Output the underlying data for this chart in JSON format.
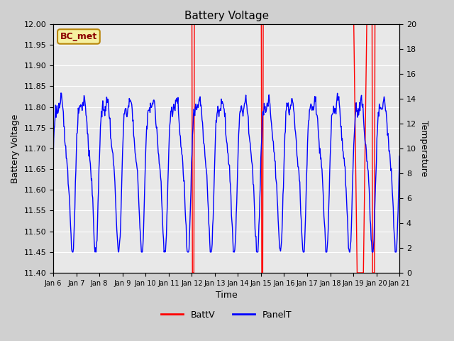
{
  "title": "Battery Voltage",
  "xlabel": "Time",
  "ylabel_left": "Battery Voltage",
  "ylabel_right": "Temperature",
  "legend_label": "BC_met",
  "series_labels": [
    "BattV",
    "PanelT"
  ],
  "series_colors": [
    "red",
    "blue"
  ],
  "left_ylim": [
    11.4,
    12.0
  ],
  "right_ylim": [
    0,
    20
  ],
  "left_yticks": [
    11.4,
    11.45,
    11.5,
    11.55,
    11.6,
    11.65,
    11.7,
    11.75,
    11.8,
    11.85,
    11.9,
    11.95,
    12.0
  ],
  "right_yticks": [
    0,
    2,
    4,
    6,
    8,
    10,
    12,
    14,
    16,
    18,
    20
  ],
  "x_tick_labels": [
    "Jan 6",
    "Jan 7",
    "Jan 8",
    "Jan 9",
    "Jan 10",
    "Jan 11",
    "Jan 12",
    "Jan 13",
    "Jan 14",
    "Jan 15",
    "Jan 16",
    "Jan 17",
    "Jan 18",
    "Jan 19",
    "Jan 20",
    "Jan 21"
  ],
  "fig_bg": "#d0d0d0",
  "plot_bg": "#e8e8e8",
  "grid_color": "white",
  "batt_color": "red",
  "panel_color": "blue",
  "label_box_facecolor": "#f5f0a0",
  "label_box_edgecolor": "#b8860b",
  "label_text_color": "#8b0000"
}
